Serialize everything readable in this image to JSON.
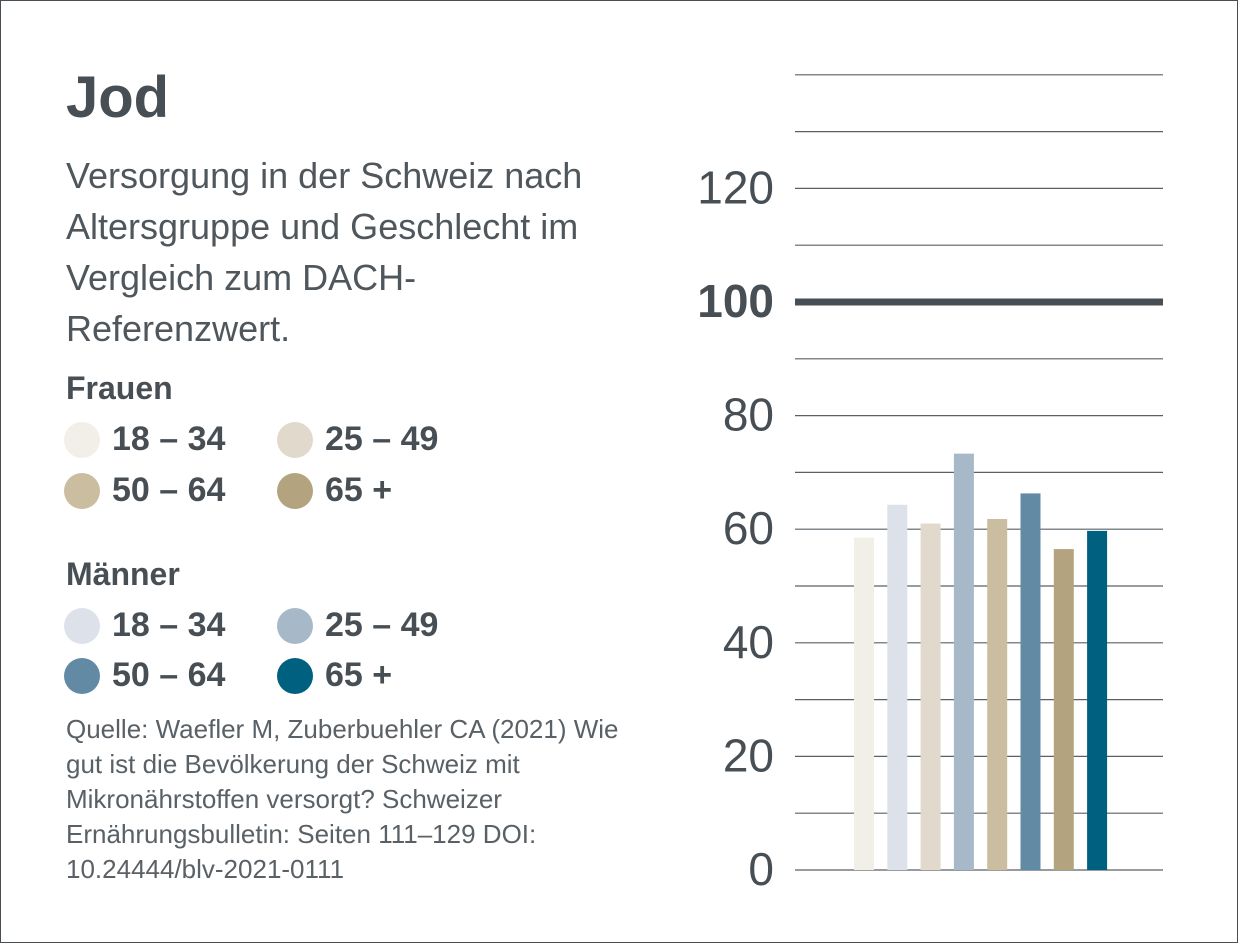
{
  "title": "Jod",
  "subtitle": "Versorgung in der Schweiz nach Altersgruppe und Geschlecht im Vergleich zum DACH-Referenzwert.",
  "legend": {
    "groups": [
      {
        "heading": "Frauen",
        "items": [
          {
            "label": "18 – 34",
            "color": "#f2efe8"
          },
          {
            "label": "25 – 49",
            "color": "#e1d9cb"
          },
          {
            "label": "50 – 64",
            "color": "#cbbea0"
          },
          {
            "label": "65 +",
            "color": "#b3a47f"
          }
        ]
      },
      {
        "heading": "Männer",
        "items": [
          {
            "label": "18 – 34",
            "color": "#dde2ea"
          },
          {
            "label": "25 – 49",
            "color": "#a7b8c8"
          },
          {
            "label": "50 – 64",
            "color": "#628aa5"
          },
          {
            "label": "65 +",
            "color": "#00607f"
          }
        ]
      }
    ]
  },
  "source": "Quelle: Waefler M, Zuberbuehler CA (2021) Wie gut ist die Bevölkerung der Schweiz mit Mikronährstoffen versorgt? Schweizer Ernährungsbulletin: Seiten 111–129 DOI: 10.24444/blv-2021-0111",
  "chart_data": {
    "type": "bar",
    "title": "Jod",
    "ylabel": "",
    "xlabel": "",
    "ylim": [
      0,
      140
    ],
    "yticks": [
      0,
      20,
      40,
      60,
      80,
      100,
      120
    ],
    "reference_line": {
      "value": 100,
      "label": "100"
    },
    "categories": [
      "Frauen 18 – 34",
      "Männer 18 – 34",
      "Frauen 25 – 49",
      "Männer 25 – 49",
      "Frauen 50 – 64",
      "Männer 50 – 64",
      "Frauen 65 +",
      "Männer 65 +"
    ],
    "values": [
      58.5,
      64.3,
      61,
      73.3,
      61.8,
      66.3,
      56.5,
      59.7
    ],
    "colors": [
      "#f2efe8",
      "#dde2ea",
      "#e1d9cb",
      "#a7b8c8",
      "#cbbea0",
      "#628aa5",
      "#b3a47f",
      "#00607f"
    ]
  }
}
